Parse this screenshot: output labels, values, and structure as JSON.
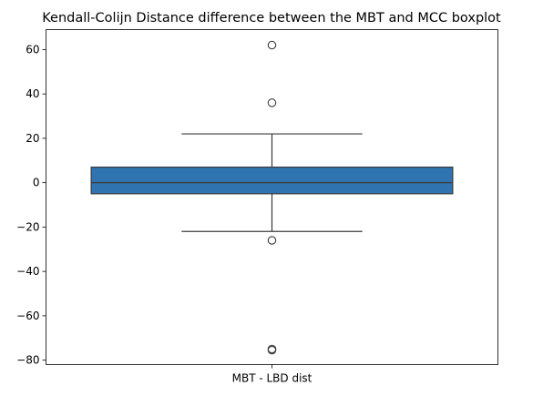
{
  "chart_data": {
    "type": "box",
    "title": "Kendall-Colijn Distance difference between the MBT and MCC boxplot",
    "xlabel": "",
    "ylabel": "",
    "categories": [
      "MBT - LBD dist"
    ],
    "ylim": [
      -82,
      69
    ],
    "y_ticks": [
      -80,
      -60,
      -40,
      -20,
      0,
      20,
      40,
      60
    ],
    "y_tick_labels": [
      "−80",
      "−60",
      "−40",
      "−20",
      "0",
      "20",
      "40",
      "60"
    ],
    "boxes": [
      {
        "category": "MBT - LBD dist",
        "whisker_low": -22,
        "q1": -5,
        "median": 0,
        "q3": 7,
        "whisker_high": 22,
        "outliers": [
          62,
          36,
          -26,
          -75,
          -75.5
        ]
      }
    ],
    "box_color": "#2f74b0",
    "line_color": "#3b3b3b",
    "grid": false,
    "legend": "none"
  }
}
